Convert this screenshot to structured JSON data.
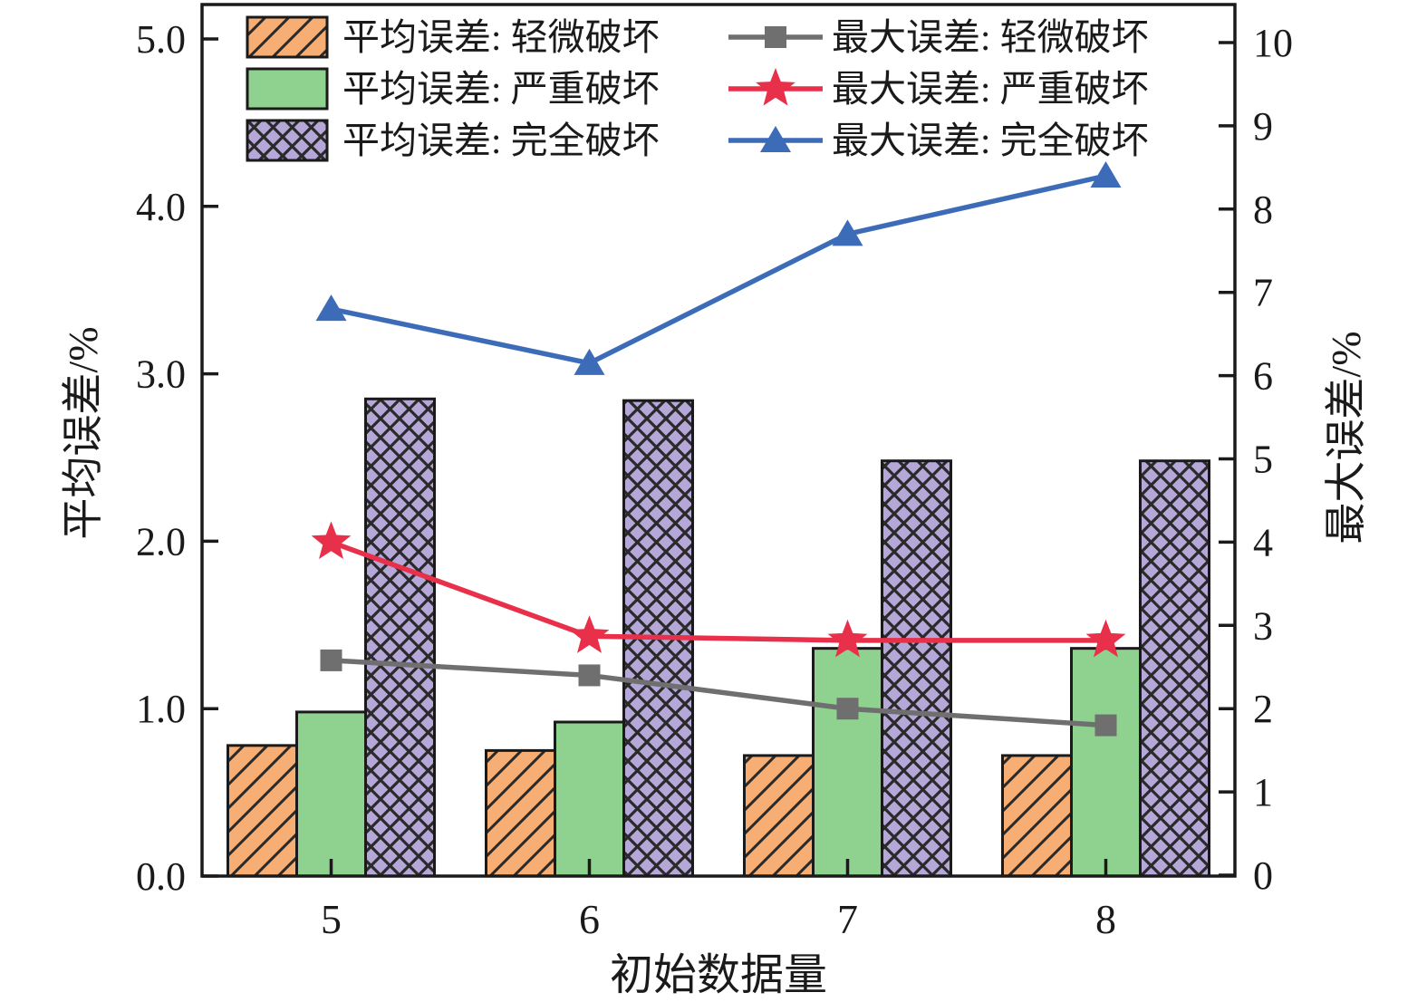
{
  "chart_data": {
    "type": "bar+line",
    "categories": [
      "5",
      "6",
      "7",
      "8"
    ],
    "x_title": "初始数据量",
    "left_axis": {
      "title": "平均误差/%",
      "min": 0,
      "max": 5,
      "tick_values": [
        0,
        1,
        2,
        3,
        4,
        5
      ],
      "tick_labels": [
        "0.0",
        "1.0",
        "2.0",
        "3.0",
        "4.0",
        "5.0"
      ]
    },
    "right_axis": {
      "title": "最大误差/%",
      "min": 0,
      "max": 10,
      "tick_values": [
        0,
        1,
        2,
        3,
        4,
        5,
        6,
        7,
        8,
        9,
        10
      ],
      "tick_labels": [
        "0",
        "1",
        "2",
        "3",
        "4",
        "5",
        "6",
        "7",
        "8",
        "9",
        "10"
      ]
    },
    "grid": "off",
    "legend_position": "upper-left-two-columns",
    "bar_series": [
      {
        "key": "light",
        "name": "平均误差: 轻微破坏",
        "axis": "left",
        "style": "hatch-diagonal",
        "fill": "#F6AE74",
        "values": [
          0.78,
          0.75,
          0.72,
          0.72
        ]
      },
      {
        "key": "severe",
        "name": "平均误差: 严重破坏",
        "axis": "left",
        "style": "solid",
        "fill": "#8FD18E",
        "values": [
          0.98,
          0.92,
          1.36,
          1.36
        ]
      },
      {
        "key": "complete",
        "name": "平均误差: 完全破坏",
        "axis": "left",
        "style": "hatch-cross",
        "fill": "#B5A7D7",
        "values": [
          2.85,
          2.84,
          2.48,
          2.48
        ]
      }
    ],
    "line_series": [
      {
        "key": "light",
        "name": "最大误差: 轻微破坏",
        "axis": "right",
        "marker": "square",
        "color": "#6F6F6F",
        "values": [
          2.58,
          2.4,
          2.0,
          1.8
        ]
      },
      {
        "key": "severe",
        "name": "最大误差: 严重破坏",
        "axis": "right",
        "marker": "star",
        "color": "#E8304A",
        "values": [
          4.0,
          2.87,
          2.82,
          2.82
        ]
      },
      {
        "key": "complete",
        "name": "最大误差: 完全破坏",
        "axis": "right",
        "marker": "triangle",
        "color": "#3C6CB8",
        "values": [
          6.8,
          6.15,
          7.7,
          8.4
        ]
      }
    ],
    "colors": {
      "spine": "#1a1a1a",
      "bar_edge": "#1a1a1a",
      "hatch_line": "#2a2a2a"
    }
  }
}
